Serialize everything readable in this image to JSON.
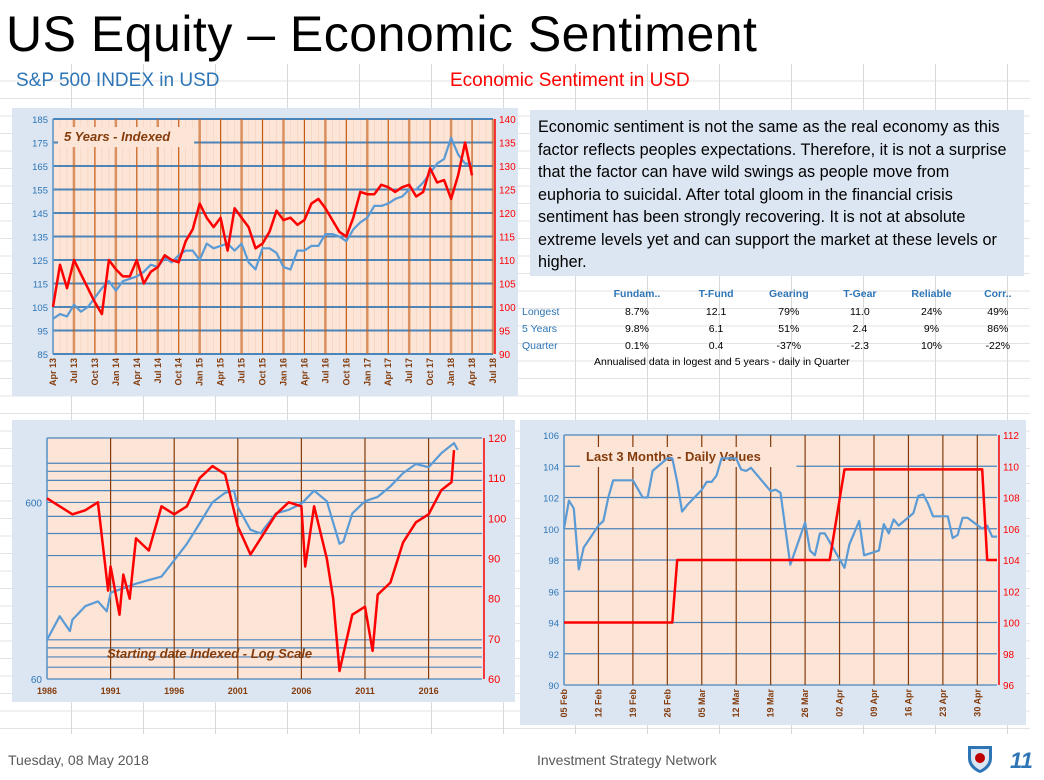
{
  "header": {
    "title": "US Equity – Economic Sentiment",
    "left_subtitle": "S&P 500 INDEX  in  USD",
    "right_subtitle": "Economic Sentiment  in  USD"
  },
  "commentary": "Economic sentiment is not the same as the real economy as this factor reflects peoples expectations.  Therefore, it is not a surprise that the factor can have wild swings as people move from euphoria to suicidal.  After total gloom in the financial crisis sentiment has been strongly recovering.  It is not at absolute extreme levels yet and can support the market at these levels or higher.",
  "stats_table": {
    "columns": [
      "Fundam..",
      "T-Fund",
      "Gearing",
      "T-Gear",
      "Reliable",
      "Corr.."
    ],
    "rows": [
      {
        "label": "Longest",
        "values": [
          "8.7%",
          "12.1",
          "79%",
          "11.0",
          "24%",
          "49%"
        ]
      },
      {
        "label": "5 Years",
        "values": [
          "9.8%",
          "6.1",
          "51%",
          "2.4",
          "9%",
          "86%"
        ]
      },
      {
        "label": "Quarter",
        "values": [
          "0.1%",
          "0.4",
          "-37%",
          "-2.3",
          "10%",
          "-22%"
        ]
      }
    ],
    "note": "Annualised data in logest and 5 years - daily in Quarter"
  },
  "colors": {
    "index": "#5b9bd5",
    "sentiment": "#ff0000",
    "plot_bg": "#fce4d6",
    "panel_bg": "#dce6f2",
    "axis_left": "#2e75b6",
    "axis_x": "#843c0c"
  },
  "chart_data": [
    {
      "type": "line",
      "title": "5 Years - Indexed",
      "x_unit": "month index from Apr 13",
      "x_ticks": [
        "Apr 13",
        "Jul 13",
        "Oct 13",
        "Jan 14",
        "Apr 14",
        "Jul 14",
        "Oct 14",
        "Jan 15",
        "Apr 15",
        "Jul 15",
        "Oct 15",
        "Jan 16",
        "Apr 16",
        "Jul 16",
        "Oct 16",
        "Jan 17",
        "Apr 17",
        "Jul 17",
        "Oct 17",
        "Jan 18",
        "Apr 18",
        "Jul 18"
      ],
      "xlim": [
        0,
        63
      ],
      "y_left": {
        "min": 85,
        "max": 185,
        "ticks": [
          "85",
          "95",
          "105",
          "115",
          "125",
          "135",
          "145",
          "155",
          "165",
          "175",
          "185"
        ]
      },
      "y_right": {
        "min": 90,
        "max": 140,
        "ticks": [
          "90",
          "95",
          "100",
          "105",
          "110",
          "115",
          "120",
          "125",
          "130",
          "135",
          "140"
        ]
      },
      "series": [
        {
          "name": "S&P 500 Index",
          "axis": "left",
          "values": [
            100,
            102,
            101,
            106,
            103,
            105,
            109,
            113,
            116,
            112,
            116,
            117,
            118,
            120,
            123,
            122,
            126,
            124,
            127,
            129,
            129,
            125,
            132,
            130,
            131,
            132,
            129,
            132,
            124,
            121,
            130,
            130,
            128,
            122,
            121,
            129,
            129,
            131,
            131,
            136,
            136,
            135,
            133,
            138,
            141,
            143,
            148,
            148,
            149,
            151,
            152,
            155,
            155,
            158,
            162,
            166,
            168,
            177,
            170,
            166,
            166
          ]
        },
        {
          "name": "Economic Sentiment",
          "axis": "right",
          "values": [
            100,
            109,
            104,
            110,
            107,
            104,
            101,
            98.5,
            110,
            108,
            106.5,
            106.5,
            110,
            105,
            107.5,
            108.5,
            111,
            110,
            109.5,
            114,
            116.5,
            122,
            119,
            117,
            119,
            112,
            121,
            119,
            117,
            112.5,
            113.5,
            116,
            120.5,
            118.5,
            119,
            117.5,
            118.5,
            122,
            123,
            121,
            118.5,
            116,
            115,
            119,
            124.5,
            124,
            124,
            126,
            125.5,
            124.5,
            125.5,
            126,
            123.5,
            124.5,
            129.5,
            126.5,
            127,
            123,
            128,
            135,
            128
          ]
        }
      ]
    },
    {
      "type": "line",
      "title": "Starting date Indexed - Log Scale",
      "x_ticks": [
        "1986",
        "1991",
        "1996",
        "2001",
        "2006",
        "2011",
        "2016"
      ],
      "xlim": [
        1986,
        2020.2
      ],
      "y_left": {
        "scale": "log",
        "min": 60,
        "max": 1390,
        "ticks": [
          "60",
          "600"
        ]
      },
      "y_right": {
        "min": 60,
        "max": 120,
        "ticks": [
          "60",
          "70",
          "80",
          "90",
          "100",
          "110",
          "120"
        ]
      },
      "series": [
        {
          "name": "S&P 500 Index",
          "axis": "left",
          "points": [
            [
              1986,
              100
            ],
            [
              1987,
              136
            ],
            [
              1987.8,
              112
            ],
            [
              1988,
              130
            ],
            [
              1989,
              155
            ],
            [
              1990,
              165
            ],
            [
              1990.7,
              145
            ],
            [
              1991,
              185
            ],
            [
              1992,
              196
            ],
            [
              1993,
              208
            ],
            [
              1994,
              218
            ],
            [
              1995,
              228
            ],
            [
              1996,
              282
            ],
            [
              1997,
              350
            ],
            [
              1998,
              456
            ],
            [
              1999,
              600
            ],
            [
              2000,
              680
            ],
            [
              2000.7,
              700
            ],
            [
              2001,
              565
            ],
            [
              2002,
              420
            ],
            [
              2002.8,
              400
            ],
            [
              2003,
              420
            ],
            [
              2004,
              520
            ],
            [
              2005,
              545
            ],
            [
              2006,
              590
            ],
            [
              2007,
              700
            ],
            [
              2008,
              610
            ],
            [
              2009,
              350
            ],
            [
              2009.3,
              360
            ],
            [
              2010,
              520
            ],
            [
              2011,
              610
            ],
            [
              2012,
              645
            ],
            [
              2013,
              740
            ],
            [
              2014,
              880
            ],
            [
              2015,
              990
            ],
            [
              2016,
              950
            ],
            [
              2017,
              1140
            ],
            [
              2018,
              1300
            ],
            [
              2018.3,
              1190
            ]
          ]
        },
        {
          "name": "Economic Sentiment",
          "axis": "right",
          "points": [
            [
              1986,
              105
            ],
            [
              1987,
              103
            ],
            [
              1988,
              101
            ],
            [
              1989,
              102
            ],
            [
              1990,
              104
            ],
            [
              1990.8,
              82
            ],
            [
              1991,
              88
            ],
            [
              1991.7,
              76
            ],
            [
              1992,
              86
            ],
            [
              1992.5,
              80
            ],
            [
              1993,
              95
            ],
            [
              1994,
              92
            ],
            [
              1995,
              103
            ],
            [
              1996,
              101
            ],
            [
              1997,
              103
            ],
            [
              1998,
              110
            ],
            [
              1999,
              113
            ],
            [
              2000,
              111
            ],
            [
              2001,
              98
            ],
            [
              2002,
              91
            ],
            [
              2003,
              96
            ],
            [
              2004,
              101
            ],
            [
              2005,
              104
            ],
            [
              2006,
              103
            ],
            [
              2006.3,
              88
            ],
            [
              2007,
              103
            ],
            [
              2008,
              90
            ],
            [
              2008.5,
              80
            ],
            [
              2009,
              62
            ],
            [
              2010,
              76
            ],
            [
              2011,
              78
            ],
            [
              2011.6,
              67
            ],
            [
              2012,
              81
            ],
            [
              2013,
              84
            ],
            [
              2014,
              94
            ],
            [
              2015,
              99
            ],
            [
              2016,
              101
            ],
            [
              2017,
              107
            ],
            [
              2017.8,
              109
            ],
            [
              2018,
              117
            ]
          ]
        }
      ]
    },
    {
      "type": "line",
      "title": "Last 3 Months - Daily Values",
      "x_unit": "days from 05 Feb",
      "x_ticks": [
        "05 Feb",
        "12 Feb",
        "19 Feb",
        "26 Feb",
        "05 Mar",
        "12 Mar",
        "19 Mar",
        "26 Mar",
        "02 Apr",
        "09 Apr",
        "16 Apr",
        "23 Apr",
        "30 Apr"
      ],
      "xlim": [
        0,
        88
      ],
      "y_left": {
        "min": 90,
        "max": 106,
        "ticks": [
          "90",
          "92",
          "94",
          "96",
          "98",
          "100",
          "102",
          "104",
          "106"
        ]
      },
      "y_right": {
        "min": 96,
        "max": 112,
        "ticks": [
          "96",
          "98",
          "100",
          "102",
          "104",
          "106",
          "108",
          "110",
          "112"
        ]
      },
      "series": [
        {
          "name": "S&P 500 Index",
          "axis": "left",
          "points": [
            [
              0,
              100
            ],
            [
              1,
              101.8
            ],
            [
              2,
              101.3
            ],
            [
              3,
              97.4
            ],
            [
              4,
              98.8
            ],
            [
              7,
              100.2
            ],
            [
              8,
              100.5
            ],
            [
              9,
              102
            ],
            [
              10,
              103.1
            ],
            [
              14,
              103.1
            ],
            [
              16,
              102
            ],
            [
              17,
              102
            ],
            [
              18,
              103.7
            ],
            [
              21,
              104.5
            ],
            [
              22,
              104.5
            ],
            [
              23,
              103
            ],
            [
              24,
              101.1
            ],
            [
              25,
              101.5
            ],
            [
              28,
              102.5
            ],
            [
              29,
              103
            ],
            [
              30,
              103
            ],
            [
              31,
              103.4
            ],
            [
              32,
              104.5
            ],
            [
              35,
              104.5
            ],
            [
              36,
              103.8
            ],
            [
              37,
              103.7
            ],
            [
              38,
              103.9
            ],
            [
              42,
              102.4
            ],
            [
              43,
              102.5
            ],
            [
              44,
              102.3
            ],
            [
              45,
              100
            ],
            [
              46,
              97.7
            ],
            [
              49,
              100.4
            ],
            [
              50,
              98.6
            ],
            [
              51,
              98.3
            ],
            [
              52,
              99.7
            ],
            [
              53,
              99.7
            ],
            [
              57,
              97.5
            ],
            [
              58,
              99
            ],
            [
              60,
              100.5
            ],
            [
              61,
              98.3
            ],
            [
              64,
              98.6
            ],
            [
              65,
              100.3
            ],
            [
              66,
              99.7
            ],
            [
              67,
              100.6
            ],
            [
              68,
              100.2
            ],
            [
              71,
              101
            ],
            [
              72,
              102.1
            ],
            [
              73,
              102.2
            ],
            [
              74,
              101.6
            ],
            [
              75,
              100.8
            ],
            [
              78,
              100.8
            ],
            [
              79,
              99.4
            ],
            [
              80,
              99.6
            ],
            [
              81,
              100.7
            ],
            [
              82,
              100.7
            ],
            [
              85,
              100
            ],
            [
              86,
              100.2
            ],
            [
              87,
              99.5
            ],
            [
              88,
              99.5
            ]
          ]
        },
        {
          "name": "Economic Sentiment",
          "axis": "right",
          "points": [
            [
              0,
              100
            ],
            [
              22,
              100
            ],
            [
              23,
              104
            ],
            [
              54,
              104
            ],
            [
              57,
              109.8
            ],
            [
              85,
              109.8
            ],
            [
              86,
              104
            ],
            [
              88,
              104
            ]
          ]
        }
      ]
    }
  ],
  "footer": {
    "date": "Tuesday, 08 May 2018",
    "company": "Investment Strategy Network",
    "page_number": "11"
  }
}
